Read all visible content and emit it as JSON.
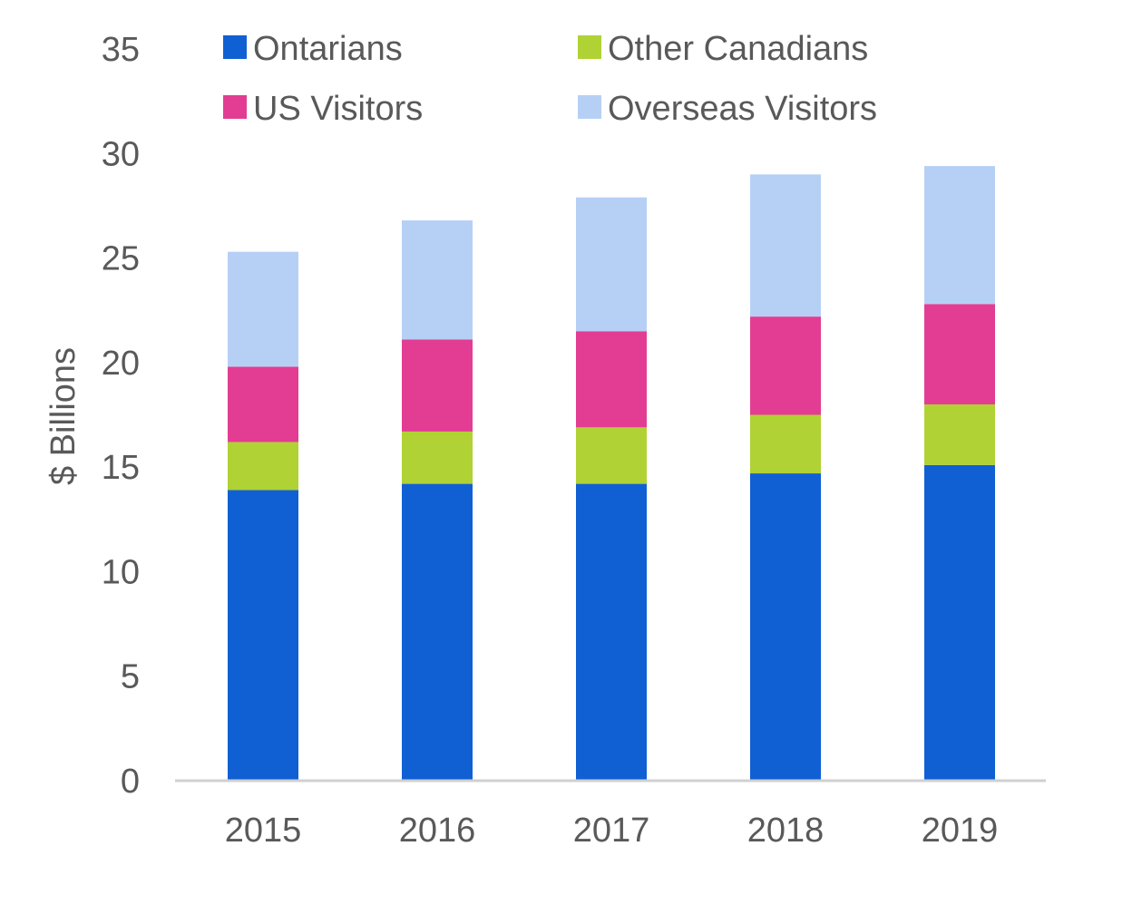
{
  "chart_data": {
    "type": "bar",
    "stacked": true,
    "title": "",
    "xlabel": "",
    "ylabel": "$ Billions",
    "ylim": [
      0,
      35
    ],
    "y_ticks": [
      0,
      5,
      10,
      15,
      20,
      25,
      30,
      35
    ],
    "categories": [
      "2015",
      "2016",
      "2017",
      "2018",
      "2019"
    ],
    "series": [
      {
        "name": "Ontarians",
        "color": "#1060D4",
        "values": [
          13.9,
          14.2,
          14.2,
          14.7,
          15.1
        ]
      },
      {
        "name": "Other Canadians",
        "color": "#B0D235",
        "values": [
          2.3,
          2.5,
          2.7,
          2.8,
          2.9
        ]
      },
      {
        "name": "US Visitors",
        "color": "#E23D92",
        "values": [
          3.6,
          4.4,
          4.6,
          4.7,
          4.8
        ]
      },
      {
        "name": "Overseas Visitors",
        "color": "#B6D0F5",
        "values": [
          5.5,
          5.7,
          6.4,
          6.8,
          6.6
        ]
      }
    ],
    "grid": false,
    "legend": "top",
    "axis_color": "#D0D0D0"
  }
}
